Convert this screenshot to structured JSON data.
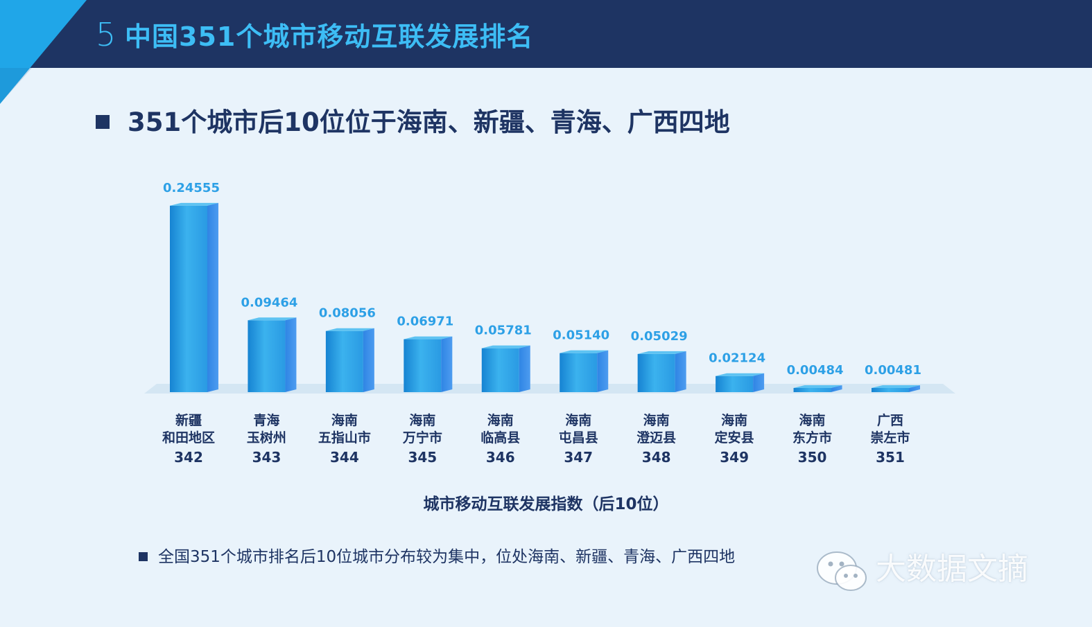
{
  "slide": {
    "number": "5",
    "title": "中国351个城市移动互联发展排名",
    "heading": "351个城市后10位位于海南、新疆、青海、广西四地",
    "note": "全国351个城市排名后10位城市分布较为集中，位处海南、新疆、青海、广西四地"
  },
  "watermark": {
    "text": "大数据文摘",
    "icon": "wechat-icon"
  },
  "colors": {
    "header": "#1e3463",
    "accent": "#3dbdf5",
    "bar_front": "#1f96dd",
    "bar_top": "#5ec3f2",
    "bar_side": "#2f7fe0",
    "label": "#2da0e6",
    "text": "#1e3463"
  },
  "chart_data": {
    "type": "bar",
    "title": "城市移动互联发展指数（后10位）",
    "categories": [
      {
        "province": "新疆",
        "city": "和田地区",
        "rank": "342"
      },
      {
        "province": "青海",
        "city": "玉树州",
        "rank": "343"
      },
      {
        "province": "海南",
        "city": "五指山市",
        "rank": "344"
      },
      {
        "province": "海南",
        "city": "万宁市",
        "rank": "345"
      },
      {
        "province": "海南",
        "city": "临高县",
        "rank": "346"
      },
      {
        "province": "海南",
        "city": "屯昌县",
        "rank": "347"
      },
      {
        "province": "海南",
        "city": "澄迈县",
        "rank": "348"
      },
      {
        "province": "海南",
        "city": "定安县",
        "rank": "349"
      },
      {
        "province": "海南",
        "city": "东方市",
        "rank": "350"
      },
      {
        "province": "广西",
        "city": "崇左市",
        "rank": "351"
      }
    ],
    "values": [
      0.24555,
      0.09464,
      0.08056,
      0.06971,
      0.05781,
      0.0514,
      0.05029,
      0.02124,
      0.00484,
      0.00481
    ],
    "value_labels": [
      "0.24555",
      "0.09464",
      "0.08056",
      "0.06971",
      "0.05781",
      "0.05140",
      "0.05029",
      "0.02124",
      "0.00484",
      "0.00481"
    ],
    "grid": false,
    "legend": "none"
  }
}
